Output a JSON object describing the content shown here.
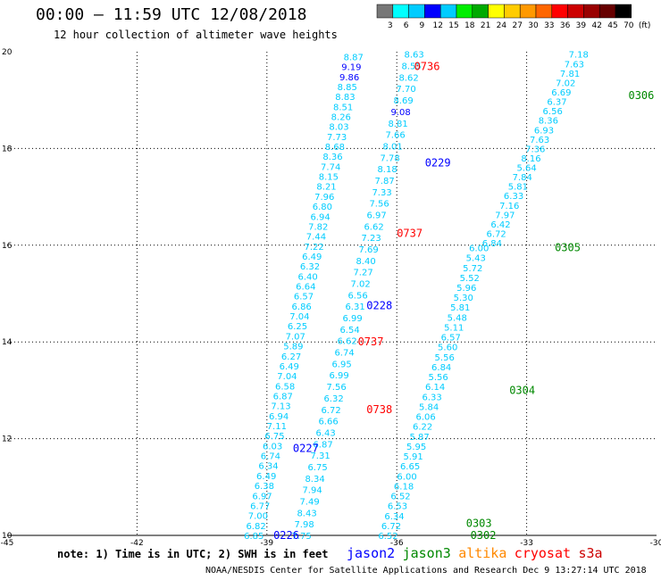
{
  "chart_data": {
    "type": "scatter",
    "title": "00:00 – 11:59 UTC 12/08/2018",
    "subtitle": "12 hour collection of altimeter wave heights",
    "xlim": [
      -45,
      -30
    ],
    "ylim": [
      10,
      20
    ],
    "x_ticks": [
      "-45",
      "-42",
      "-39",
      "-36",
      "-33",
      "-30"
    ],
    "y_ticks": [
      "10",
      "12",
      "14",
      "16",
      "18",
      "20"
    ],
    "grid": true,
    "colorbar": {
      "labels": [
        "3",
        "6",
        "9",
        "12",
        "15",
        "18",
        "21",
        "24",
        "27",
        "30",
        "33",
        "36",
        "39",
        "42",
        "45",
        "70",
        "(ft)"
      ],
      "colors": [
        "#777777",
        "#00ffff",
        "#00ccff",
        "#0000ff",
        "#00ccff",
        "#00ee00",
        "#00aa00",
        "#ffff00",
        "#ffcc00",
        "#ff9900",
        "#ff6600",
        "#ff0000",
        "#cc0000",
        "#990000",
        "#660000",
        "#000000"
      ]
    },
    "note": "note: 1) Time is in UTC; 2) SWH is in feet",
    "legend": [
      {
        "name": "jason2",
        "color": "#0000ff"
      },
      {
        "name": "jason3",
        "color": "#008800"
      },
      {
        "name": "altika",
        "color": "#ff8800"
      },
      {
        "name": "cryosat",
        "color": "#ff0000"
      },
      {
        "name": "s3a",
        "color": "#cc0000"
      }
    ],
    "footer": "NOAA/NESDIS Center for Satellite Applications and Research   Dec  9 13:27:14 UTC 2018",
    "tracks": [
      {
        "sat": "jason2",
        "x0": -39.3,
        "y0": 10.0,
        "x1": -37.0,
        "y1": 19.9,
        "values": [
          "6.85",
          "6.82",
          "7.00",
          "6.77",
          "6.97",
          "6.38",
          "6.49",
          "6.34",
          "6.74",
          "6.03",
          "6.75",
          "7.11",
          "6.94",
          "7.13",
          "6.87",
          "6.58",
          "7.04",
          "6.49",
          "6.27",
          "5.89",
          "7.07",
          "6.25",
          "7.04",
          "6.86",
          "6.57",
          "6.64",
          "6.40",
          "6.32",
          "6.49",
          "7.22",
          "7.44",
          "7.82",
          "6.94",
          "6.80",
          "7.96",
          "8.21",
          "8.15",
          "7.74",
          "8.36",
          "8.68",
          "7.73",
          "8.03",
          "8.26",
          "8.51",
          "8.83",
          "8.85",
          "9.86",
          "9.19",
          "8.87"
        ],
        "colors": [
          "#00ccff",
          "#00ccff",
          "#00ccff",
          "#00ccff",
          "#00ccff",
          "#00ccff",
          "#00ccff",
          "#00ccff",
          "#00ccff",
          "#00ccff",
          "#00ccff",
          "#00ccff",
          "#00ccff",
          "#00ccff",
          "#00ccff",
          "#00ccff",
          "#00ccff",
          "#00ccff",
          "#00ccff",
          "#00ccff",
          "#00ccff",
          "#00ccff",
          "#00ccff",
          "#00ccff",
          "#00ccff",
          "#00ccff",
          "#00ccff",
          "#00ccff",
          "#00ccff",
          "#00ccff",
          "#00ccff",
          "#00ccff",
          "#00ccff",
          "#00ccff",
          "#00ccff",
          "#00ccff",
          "#00ccff",
          "#00ccff",
          "#00ccff",
          "#00ccff",
          "#00ccff",
          "#00ccff",
          "#00ccff",
          "#00ccff",
          "#00ccff",
          "#00ccff",
          "#0000ff",
          "#0000ff",
          "#00ccff"
        ]
      },
      {
        "sat": "jason2",
        "x0": -38.2,
        "y0": 10.0,
        "x1": -35.6,
        "y1": 19.95,
        "values": [
          "7.75",
          "7.98",
          "8.43",
          "7.49",
          "7.94",
          "8.34",
          "6.75",
          "7.31",
          "6.87",
          "6.43",
          "6.66",
          "6.72",
          "6.32",
          "7.56",
          "6.99",
          "6.95",
          "6.74",
          "6.62",
          "6.54",
          "6.99",
          "6.31",
          "6.56",
          "7.02",
          "7.27",
          "8.40",
          "7.69",
          "7.23",
          "6.62",
          "6.97",
          "7.56",
          "7.33",
          "7.87",
          "8.18",
          "7.78",
          "8.01",
          "7.66",
          "8.81",
          "9.08",
          "8.69",
          "7.70",
          "8.62",
          "8.55",
          "8.63"
        ],
        "colors": [
          "#00ccff",
          "#00ccff",
          "#00ccff",
          "#00ccff",
          "#00ccff",
          "#00ccff",
          "#00ccff",
          "#00ccff",
          "#00ccff",
          "#00ccff",
          "#00ccff",
          "#00ccff",
          "#00ccff",
          "#00ccff",
          "#00ccff",
          "#00ccff",
          "#00ccff",
          "#00ccff",
          "#00ccff",
          "#00ccff",
          "#00ccff",
          "#00ccff",
          "#00ccff",
          "#00ccff",
          "#00ccff",
          "#00ccff",
          "#00ccff",
          "#00ccff",
          "#00ccff",
          "#00ccff",
          "#00ccff",
          "#00ccff",
          "#00ccff",
          "#00ccff",
          "#00ccff",
          "#00ccff",
          "#00ccff",
          "#0000ff",
          "#00ccff",
          "#00ccff",
          "#00ccff",
          "#00ccff",
          "#00ccff"
        ]
      },
      {
        "sat": "jason3",
        "x0": -36.2,
        "y0": 10.0,
        "x1": -34.1,
        "y1": 15.95,
        "values": [
          "6.52",
          "6.72",
          "6.34",
          "6.53",
          "6.52",
          "6.18",
          "6.00",
          "6.65",
          "5.91",
          "5.95",
          "5.87",
          "6.22",
          "6.06",
          "5.84",
          "6.33",
          "6.14",
          "5.56",
          "6.84",
          "5.56",
          "5.60",
          "6.57",
          "5.11",
          "5.48",
          "5.81",
          "5.30",
          "5.96",
          "5.52",
          "5.72",
          "5.43",
          "6.00"
        ],
        "colors": [
          "#00ccff",
          "#00ccff",
          "#00ccff",
          "#00ccff",
          "#00ccff",
          "#00ccff",
          "#00ccff",
          "#00ccff",
          "#00ccff",
          "#00ccff",
          "#00ccff",
          "#00ccff",
          "#00ccff",
          "#00ccff",
          "#00ccff",
          "#00ccff",
          "#00ccff",
          "#00ccff",
          "#00ccff",
          "#00ccff",
          "#00ccff",
          "#00ccff",
          "#00ccff",
          "#00ccff",
          "#00ccff",
          "#00ccff",
          "#00ccff",
          "#00ccff",
          "#00ccff",
          "#00ccff"
        ]
      },
      {
        "sat": "jason3",
        "x0": -33.8,
        "y0": 16.05,
        "x1": -31.8,
        "y1": 19.95,
        "values": [
          "6.84",
          "6.72",
          "6.42",
          "7.97",
          "7.16",
          "6.33",
          "5.81",
          "7.84",
          "5.64",
          "8.16",
          "7.36",
          "7.63",
          "6.93",
          "8.36",
          "6.56",
          "6.37",
          "6.69",
          "7.02",
          "7.81",
          "7.63",
          "7.18"
        ],
        "colors": [
          "#00ccff",
          "#00ccff",
          "#00ccff",
          "#00ccff",
          "#00ccff",
          "#00ccff",
          "#00ccff",
          "#00ccff",
          "#00ccff",
          "#00ccff",
          "#00ccff",
          "#00ccff",
          "#00ccff",
          "#00ccff",
          "#00ccff",
          "#00ccff",
          "#00ccff",
          "#00ccff",
          "#00ccff",
          "#00ccff",
          "#00ccff"
        ]
      }
    ],
    "pass_labels": [
      {
        "text": "0226",
        "x": -38.85,
        "y": 10.0,
        "color": "#0000ff"
      },
      {
        "text": "0227",
        "x": -38.4,
        "y": 11.8,
        "color": "#0000ff"
      },
      {
        "text": "0738",
        "x": -36.7,
        "y": 12.6,
        "color": "#ff0000"
      },
      {
        "text": "0737",
        "x": -36.9,
        "y": 14.0,
        "color": "#ff0000"
      },
      {
        "text": "0228",
        "x": -36.7,
        "y": 14.75,
        "color": "#0000ff"
      },
      {
        "text": "0737",
        "x": -36.0,
        "y": 16.25,
        "color": "#ff0000"
      },
      {
        "text": "0229",
        "x": -35.35,
        "y": 17.7,
        "color": "#0000ff"
      },
      {
        "text": "0736",
        "x": -35.6,
        "y": 19.7,
        "color": "#ff0000"
      },
      {
        "text": "0302",
        "x": -34.3,
        "y": 10.0,
        "color": "#008800"
      },
      {
        "text": "0303",
        "x": -34.4,
        "y": 10.25,
        "color": "#008800"
      },
      {
        "text": "0304",
        "x": -33.4,
        "y": 13.0,
        "color": "#008800"
      },
      {
        "text": "0305",
        "x": -32.35,
        "y": 15.95,
        "color": "#008800"
      },
      {
        "text": "0306",
        "x": -30.65,
        "y": 19.1,
        "color": "#008800"
      }
    ]
  }
}
